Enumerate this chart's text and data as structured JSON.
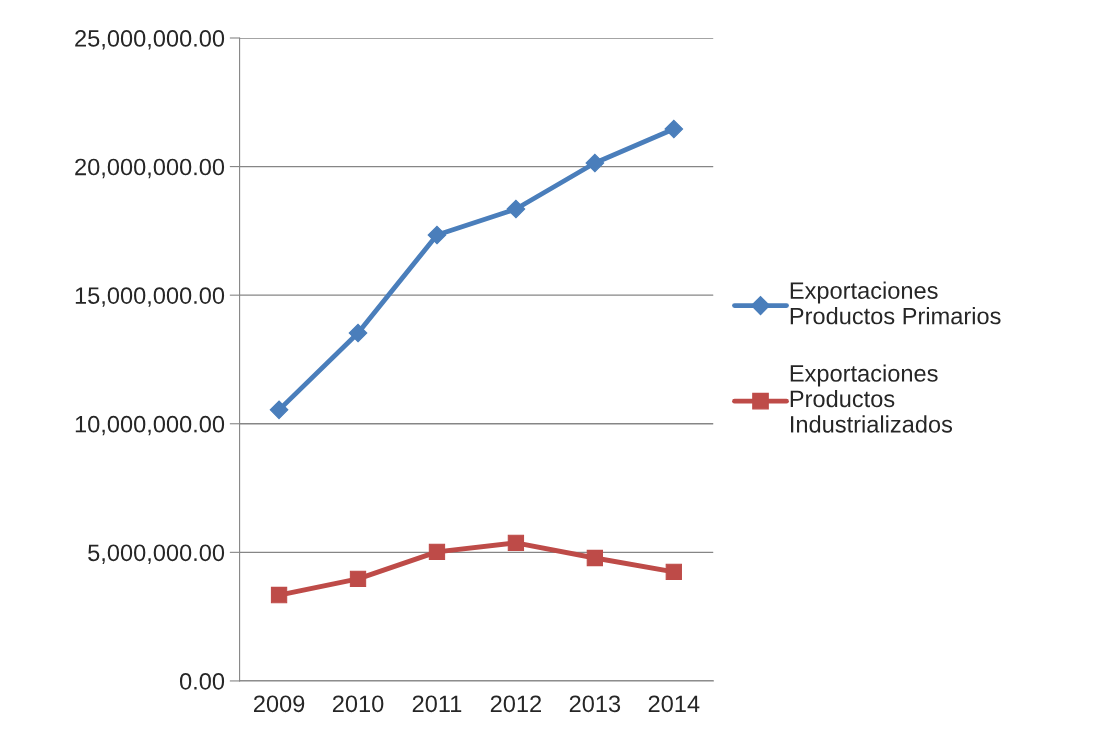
{
  "chart_data": {
    "type": "line",
    "categories": [
      "2009",
      "2010",
      "2011",
      "2012",
      "2013",
      "2014"
    ],
    "series": [
      {
        "name": "Exportaciones\nProductos Primarios",
        "color": "#4a7ebb",
        "marker": "diamond",
        "values": [
          10540000,
          13530000,
          17340000,
          18350000,
          20140000,
          21460000
        ]
      },
      {
        "name": "Exportaciones\nProductos\nIndustrializados",
        "color": "#be4b48",
        "marker": "square",
        "values": [
          3340000,
          3970000,
          5020000,
          5370000,
          4780000,
          4240000
        ]
      }
    ],
    "ylim": [
      0,
      25000000
    ],
    "yticks": [
      {
        "value": 0,
        "label": "0.00"
      },
      {
        "value": 5000000,
        "label": "5,000,000.00"
      },
      {
        "value": 10000000,
        "label": "10,000,000.00"
      },
      {
        "value": 15000000,
        "label": "15,000,000.00"
      },
      {
        "value": 20000000,
        "label": "20,000,000.00"
      },
      {
        "value": 25000000,
        "label": "25,000,000.00"
      }
    ],
    "grid": "y",
    "legend": "right",
    "line_style": "solid"
  }
}
